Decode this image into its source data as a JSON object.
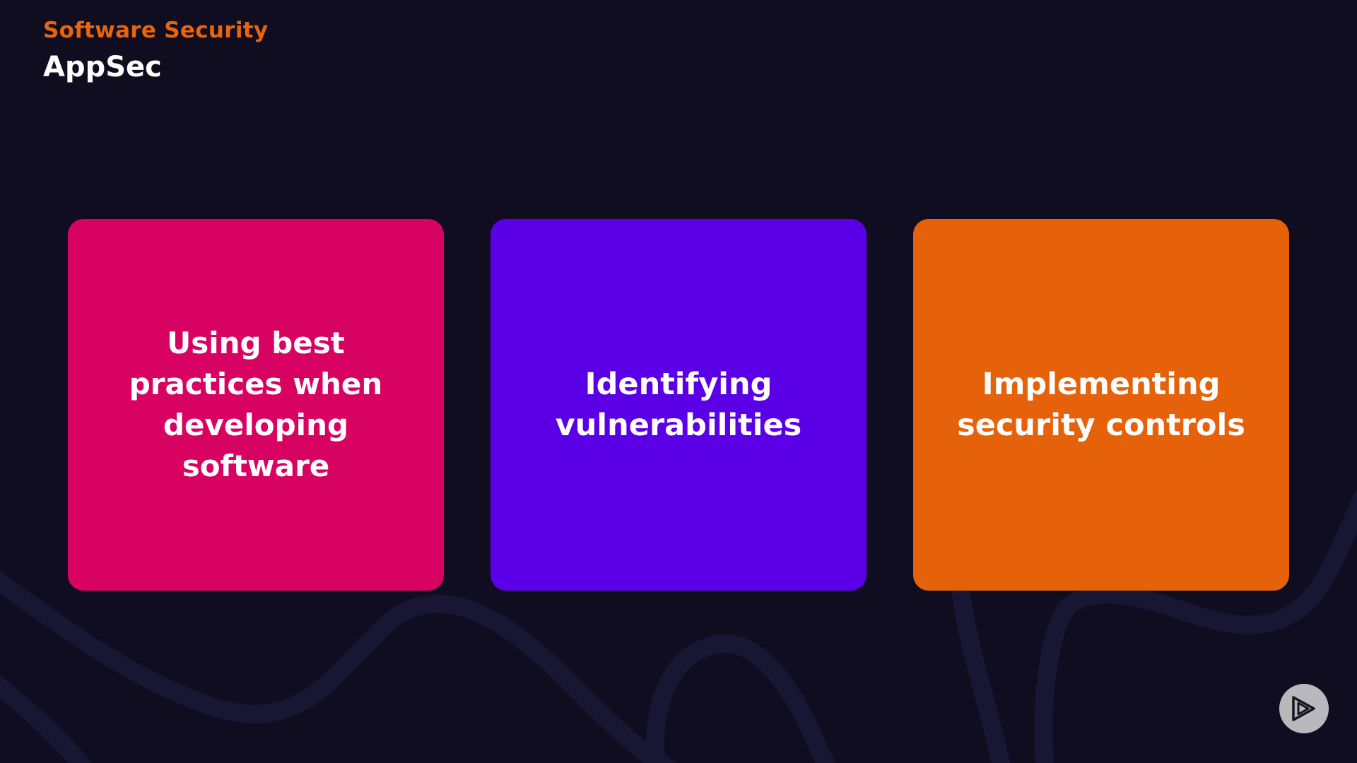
{
  "header": {
    "eyebrow": "Software Security",
    "title": "AppSec"
  },
  "cards": [
    {
      "text": "Using best practices when developing software",
      "color": "#d80263"
    },
    {
      "text": "Identifying vulnerabilities",
      "color": "#5b00e6"
    },
    {
      "text": "Implementing security controls",
      "color": "#e5620b"
    }
  ],
  "colors": {
    "background": "#0f0d1f",
    "eyebrow": "#e8650e",
    "title": "#ffffff",
    "decoration": "#1a1736",
    "logo_fill": "#b9b9bd"
  },
  "logo": {
    "icon": "pluralsight-play-logo-icon"
  }
}
